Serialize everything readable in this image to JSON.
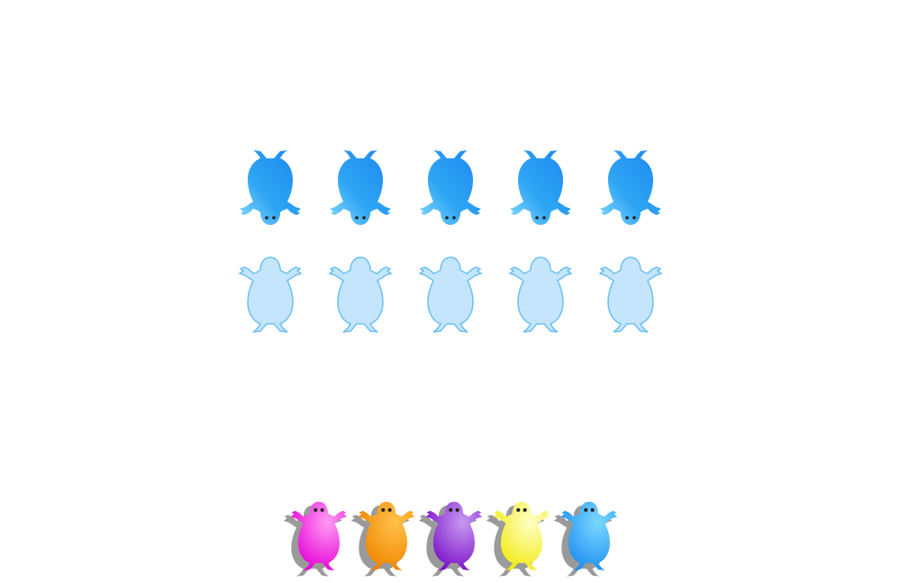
{
  "game": {
    "target_row": {
      "count": 5,
      "orientation": "upside-down",
      "color": "blue",
      "items": [
        {
          "name": "target-creature-1",
          "color": "#2b9cf0"
        },
        {
          "name": "target-creature-2",
          "color": "#2b9cf0"
        },
        {
          "name": "target-creature-3",
          "color": "#2b9cf0"
        },
        {
          "name": "target-creature-4",
          "color": "#2b9cf0"
        },
        {
          "name": "target-creature-5",
          "color": "#2b9cf0"
        }
      ]
    },
    "answer_slots": {
      "count": 5,
      "state": "empty",
      "fill": "#c4e5fb",
      "stroke": "#6cc0f2"
    },
    "palette": {
      "items": [
        {
          "color_name": "magenta",
          "light": "#ff9cf3",
          "dark": "#e600d6"
        },
        {
          "color_name": "orange",
          "light": "#ffc24a",
          "dark": "#f08400"
        },
        {
          "color_name": "purple",
          "light": "#c89af0",
          "dark": "#7a10c8"
        },
        {
          "color_name": "yellow",
          "light": "#ffffc8",
          "dark": "#f2ea10"
        },
        {
          "color_name": "blue",
          "light": "#7ad8ff",
          "dark": "#1e8ef0"
        }
      ],
      "shadow_color": "#9a9a9a"
    }
  }
}
